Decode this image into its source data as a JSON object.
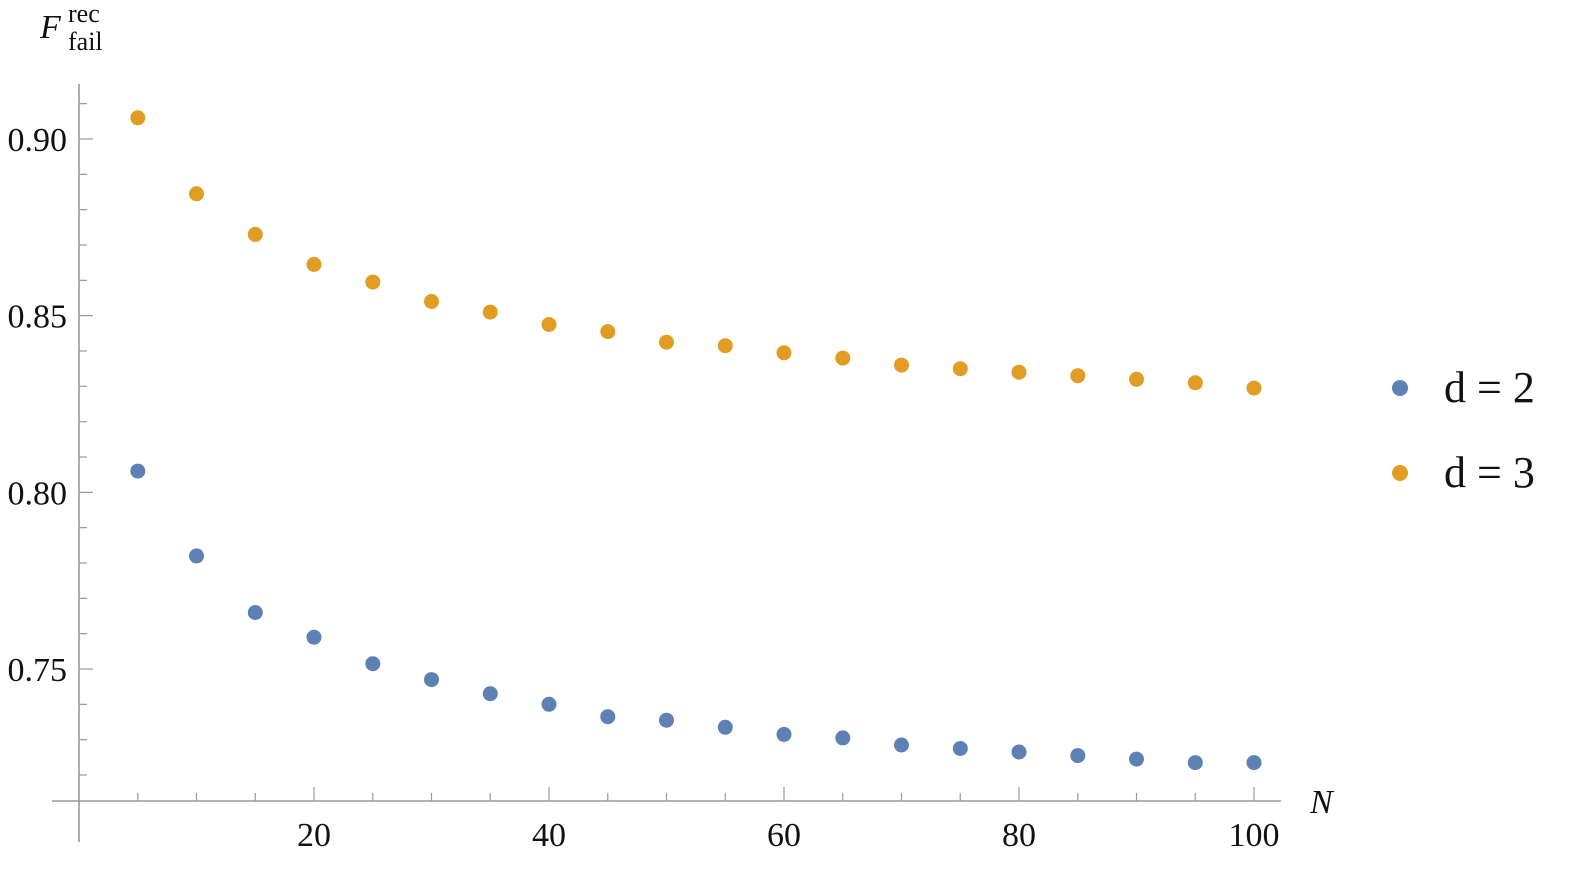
{
  "chart_data": {
    "type": "scatter",
    "title": "",
    "xlabel": "N",
    "ylabel": {
      "base": "F",
      "superscript": "rec",
      "subscript": "fail"
    },
    "xlim": [
      0,
      102
    ],
    "ylim": [
      0.7125,
      0.918
    ],
    "x_ticks_major": [
      20,
      40,
      60,
      80,
      100
    ],
    "x_ticks_minor_step": 5,
    "y_ticks_major": [
      0.75,
      0.8,
      0.85,
      0.9
    ],
    "y_tick_labels": [
      "0.75",
      "0.80",
      "0.85",
      "0.90"
    ],
    "y_ticks_minor_step": 0.01,
    "grid": false,
    "legend_position": "right",
    "x": [
      5,
      10,
      15,
      20,
      25,
      30,
      35,
      40,
      45,
      50,
      55,
      60,
      65,
      70,
      75,
      80,
      85,
      90,
      95,
      100
    ],
    "series": [
      {
        "name": "d = 2",
        "color": "#5e81b5",
        "values": [
          0.806,
          0.782,
          0.766,
          0.759,
          0.7515,
          0.747,
          0.743,
          0.74,
          0.7365,
          0.7355,
          0.7335,
          0.7315,
          0.7305,
          0.7285,
          0.7275,
          0.7265,
          0.7255,
          0.7245,
          0.7235,
          0.7235
        ]
      },
      {
        "name": "d = 3",
        "color": "#e19c24",
        "values": [
          0.906,
          0.8845,
          0.873,
          0.8645,
          0.8595,
          0.854,
          0.851,
          0.8475,
          0.8455,
          0.8425,
          0.8415,
          0.8395,
          0.838,
          0.836,
          0.835,
          0.834,
          0.833,
          0.832,
          0.831,
          0.8295
        ]
      }
    ]
  }
}
